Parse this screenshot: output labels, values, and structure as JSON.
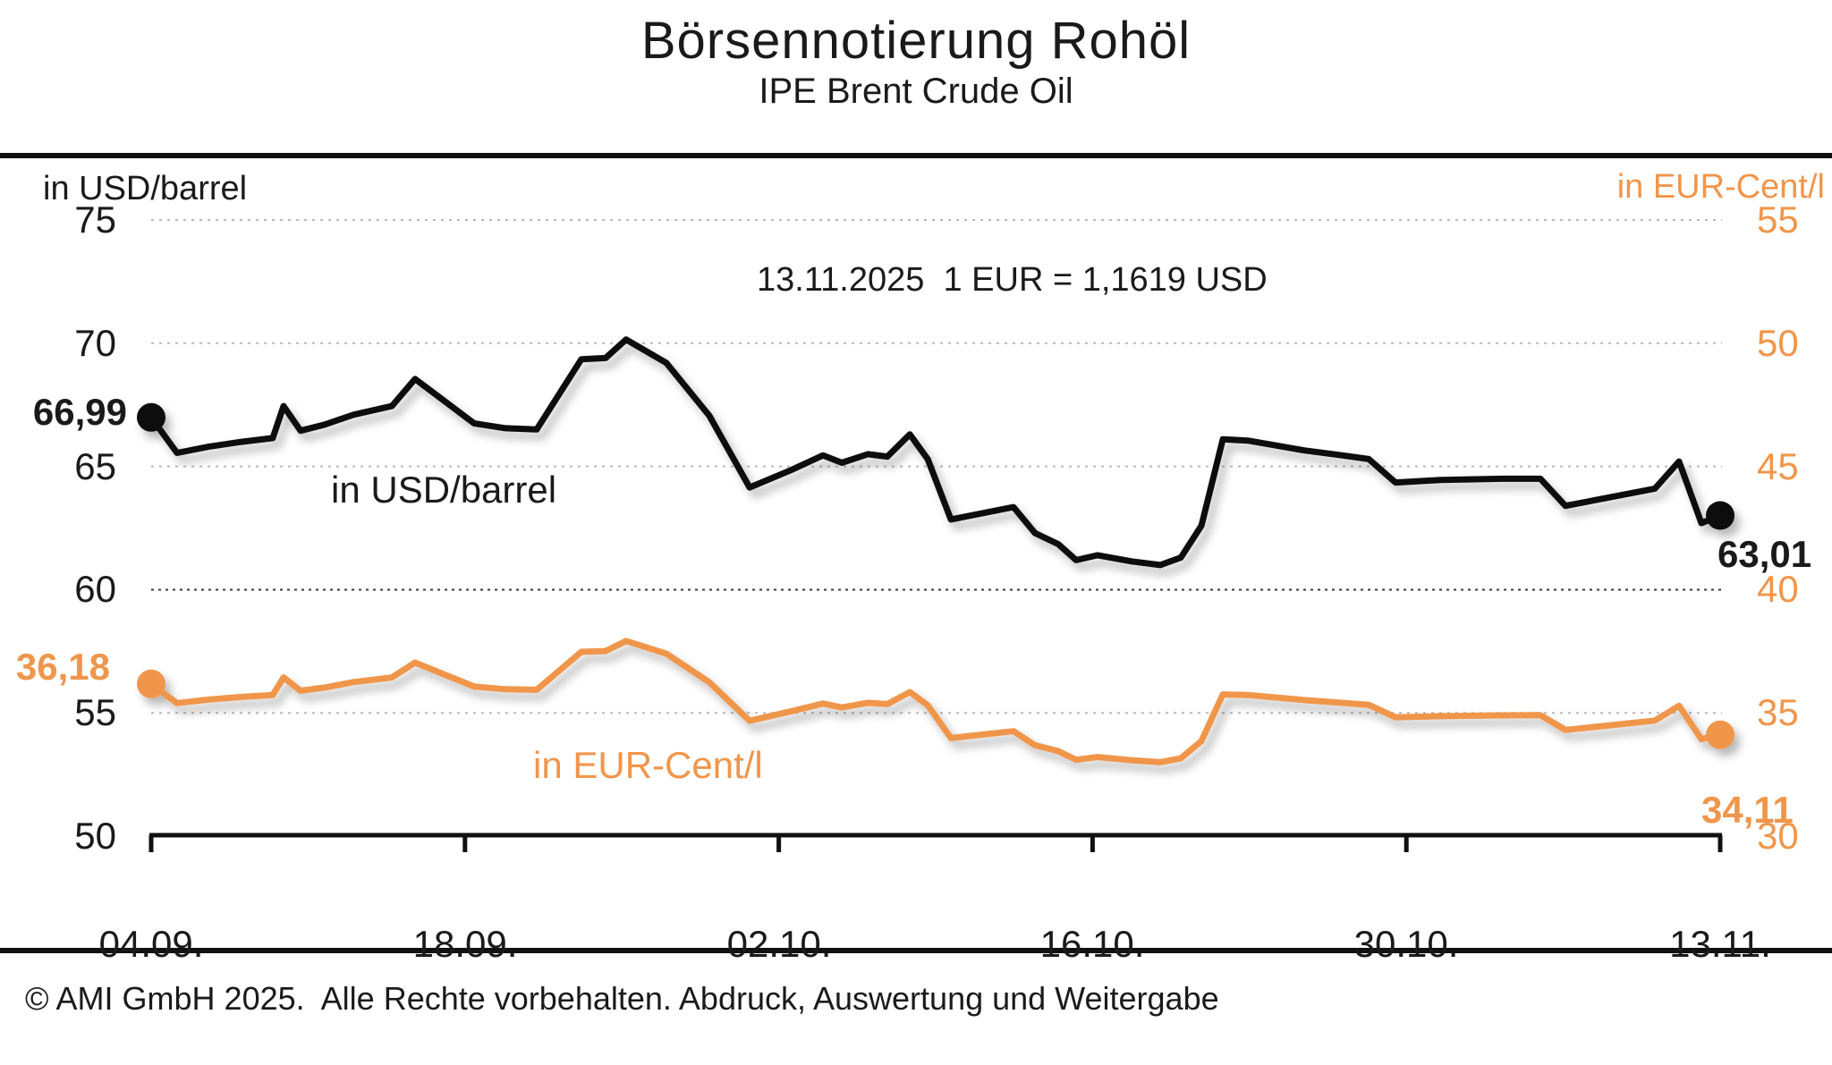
{
  "title": "Börsennotierung Rohöl",
  "subtitle": "IPE Brent Crude Oil",
  "annotation": "13.11.2025  1 EUR = 1,1619 USD",
  "footer": "© AMI GmbH 2025.  Alle Rechte vorbehalten. Abdruck, Auswertung und Weitergabe",
  "colors": {
    "black_series": "#111111",
    "orange_series": "#F0964B",
    "grid_light": "#b9b9b9",
    "grid_dark": "#3a3a3a"
  },
  "axes": {
    "left": {
      "header": "in USD/barrel",
      "ticks": [
        "75",
        "70",
        "65",
        "60",
        "55",
        "50"
      ]
    },
    "right": {
      "header": "in EUR-Cent/l",
      "ticks": [
        "55",
        "50",
        "45",
        "40",
        "35",
        "30"
      ]
    },
    "x": {
      "ticks": [
        "04.09.",
        "18.09.",
        "02.10.",
        "16.10.",
        "30.10.",
        "13.11."
      ]
    }
  },
  "series_info": {
    "usd": {
      "inline_label": "in USD/barrel",
      "start_value": "66,99",
      "end_value": "63,01"
    },
    "eur": {
      "inline_label": "in EUR-Cent/l",
      "start_value": "36,18",
      "end_value": "34,11"
    }
  },
  "chart_data": {
    "type": "line",
    "title": "Börsennotierung Rohöl",
    "subtitle": "IPE Brent Crude Oil",
    "x_tick_labels": [
      "04.09.",
      "18.09.",
      "02.10.",
      "16.10.",
      "30.10.",
      "13.11."
    ],
    "left_axis": {
      "label": "in USD/barrel",
      "range": [
        50,
        75
      ],
      "ticks": [
        75,
        70,
        65,
        60,
        55,
        50
      ]
    },
    "right_axis": {
      "label": "in EUR-Cent/l",
      "range": [
        30,
        55
      ],
      "ticks": [
        55,
        50,
        45,
        40,
        35,
        30
      ]
    },
    "grid": "horizontal dotted",
    "annotation": "13.11.2025  1 EUR = 1,1619 USD",
    "series": [
      {
        "name": "IPE Brent Crude Oil in USD/barrel",
        "axis": "left",
        "color": "#111111",
        "start_label": "66,99",
        "end_label": "63,01",
        "x_frac": [
          0,
          0.0165,
          0.0365,
          0.0576,
          0.0775,
          0.0844,
          0.0952,
          0.1106,
          0.1289,
          0.1534,
          0.1682,
          0.2058,
          0.2258,
          0.2457,
          0.2742,
          0.2896,
          0.3027,
          0.3284,
          0.3558,
          0.3814,
          0.4077,
          0.4282,
          0.4402,
          0.4567,
          0.4692,
          0.4835,
          0.4949,
          0.5097,
          0.5496,
          0.5633,
          0.5781,
          0.5895,
          0.6032,
          0.6249,
          0.6431,
          0.6562,
          0.6694,
          0.683,
          0.699,
          0.7349,
          0.7589,
          0.776,
          0.7931,
          0.8216,
          0.8615,
          0.8854,
          0.9014,
          0.9299,
          0.9584,
          0.9738,
          0.988,
          1
        ],
        "values": [
          66.99,
          65.55,
          65.8,
          66.0,
          66.15,
          67.45,
          66.45,
          66.7,
          67.1,
          67.45,
          68.55,
          66.75,
          66.55,
          66.5,
          69.35,
          69.4,
          70.15,
          69.2,
          67.05,
          64.15,
          64.85,
          65.45,
          65.15,
          65.5,
          65.4,
          66.3,
          65.3,
          62.85,
          63.35,
          62.3,
          61.85,
          61.2,
          61.4,
          61.15,
          61.0,
          61.3,
          62.6,
          66.1,
          66.05,
          65.65,
          65.45,
          65.3,
          64.35,
          64.45,
          64.5,
          64.5,
          63.4,
          63.75,
          64.1,
          65.2,
          62.7,
          63.01
        ]
      },
      {
        "name": "IPE Brent Crude Oil in EUR-Cent/l",
        "axis": "right",
        "color": "#F0964B",
        "start_label": "36,18",
        "end_label": "34,11",
        "x_frac": [
          0,
          0.0165,
          0.0365,
          0.0576,
          0.0775,
          0.0844,
          0.0952,
          0.1106,
          0.1289,
          0.1534,
          0.1682,
          0.2058,
          0.2258,
          0.2457,
          0.2742,
          0.2896,
          0.3027,
          0.3284,
          0.3558,
          0.3814,
          0.4077,
          0.4282,
          0.4402,
          0.4567,
          0.4692,
          0.4835,
          0.4949,
          0.5097,
          0.5496,
          0.5633,
          0.5781,
          0.5895,
          0.6032,
          0.6249,
          0.6431,
          0.6562,
          0.6694,
          0.683,
          0.699,
          0.7349,
          0.7589,
          0.776,
          0.7931,
          0.8216,
          0.8615,
          0.8854,
          0.9014,
          0.9299,
          0.9584,
          0.9738,
          0.988,
          1
        ],
        "values": [
          36.18,
          35.4,
          35.54,
          35.65,
          35.73,
          36.44,
          35.9,
          36.03,
          36.25,
          36.44,
          37.04,
          36.07,
          35.96,
          35.94,
          37.48,
          37.51,
          37.92,
          37.4,
          36.24,
          34.68,
          35.06,
          35.38,
          35.22,
          35.41,
          35.36,
          35.85,
          35.31,
          33.98,
          34.26,
          33.69,
          33.45,
          33.1,
          33.21,
          33.08,
          33.0,
          33.16,
          33.86,
          35.75,
          35.73,
          35.52,
          35.41,
          35.33,
          34.82,
          34.87,
          34.9,
          34.91,
          34.31,
          34.5,
          34.69,
          35.29,
          33.94,
          34.11
        ]
      }
    ]
  }
}
